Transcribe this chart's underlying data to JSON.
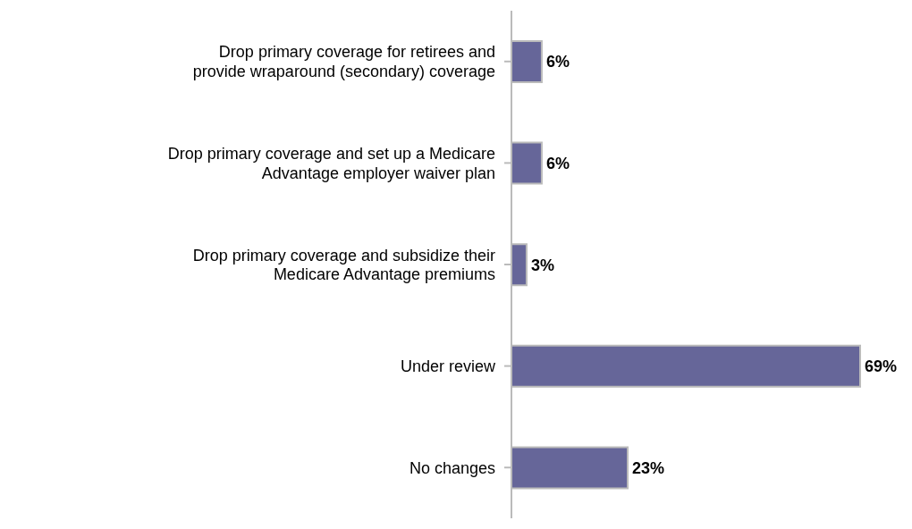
{
  "chart_data": {
    "type": "bar",
    "orientation": "horizontal",
    "categories": [
      "Drop primary coverage for retirees and provide wraparound (secondary) coverage",
      "Drop primary coverage and set up a Medicare Advantage employer waiver plan",
      "Drop primary coverage and subsidize their Medicare Advantage premiums",
      "Under review",
      "No changes"
    ],
    "values": [
      6,
      6,
      3,
      69,
      23
    ],
    "color": "#666699",
    "value_labels": [
      "6%",
      "6%",
      "3%",
      "69%",
      "23%"
    ]
  }
}
